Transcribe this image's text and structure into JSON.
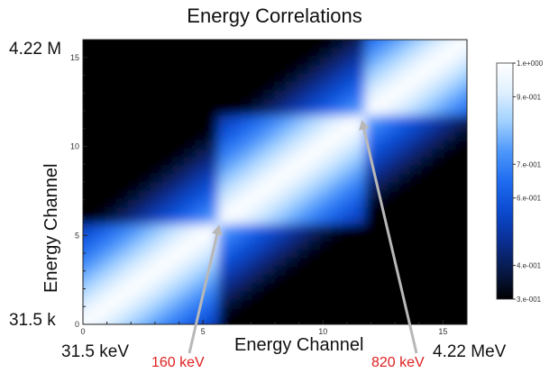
{
  "chart_data": {
    "type": "heatmap",
    "title": "Energy Correlations",
    "xlabel": "Energy Channel",
    "ylabel": "Energy Channel",
    "x_ticks": [
      "0",
      "5",
      "10",
      "15"
    ],
    "y_ticks": [
      "0",
      "5",
      "10",
      "15"
    ],
    "xlim": [
      0,
      16
    ],
    "ylim": [
      0,
      16
    ],
    "colorbar": {
      "ticks": [
        "1.e+000",
        "9.e-001",
        "7.e-001",
        "6.e-001",
        "4.e-001",
        "3.e-001"
      ],
      "values": [
        1.0,
        0.9,
        0.7,
        0.6,
        0.4,
        0.3
      ],
      "range": [
        0.3,
        1.0
      ]
    },
    "corner_labels": {
      "y_top": "4.22 M",
      "y_bottom": "31.5 k",
      "x_left": "31.5 keV",
      "x_right": "4.22 MeV"
    },
    "annotations": [
      {
        "text": "160 keV",
        "at": [
          5.7,
          5.7
        ],
        "color": "#e02020"
      },
      {
        "text": "820 keV",
        "at": [
          11.6,
          11.6
        ],
        "color": "#e02020"
      }
    ],
    "blocks": [
      {
        "range": [
          0,
          5.7
        ],
        "peak": 0.97
      },
      {
        "range": [
          5.7,
          11.6
        ],
        "peak": 0.97
      },
      {
        "range": [
          11.6,
          16.3
        ],
        "peak": 0.97
      }
    ],
    "colors": {
      "scale": [
        "#000000",
        "#071a4a",
        "#0a2f95",
        "#0b4bd0",
        "#1f6cf0",
        "#4d97fb",
        "#9fd0ff",
        "#dff0ff",
        "#ffffff"
      ],
      "annotation": "#e02020",
      "arrow": "#b8b8b8"
    }
  }
}
